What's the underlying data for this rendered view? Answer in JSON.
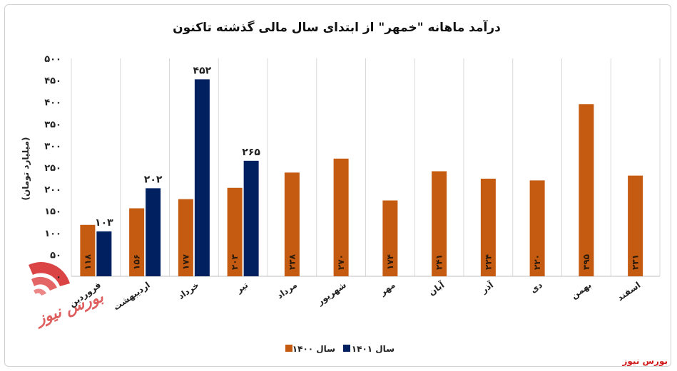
{
  "chart_data": {
    "type": "bar",
    "title": "درآمد ماهانه \"خمهر\" از ابتدای سال مالی گذشته تاکنون",
    "ylabel": "(میلیارد تومان)",
    "ylim": [
      0,
      500
    ],
    "yticks": [
      "۰",
      "۵۰",
      "۱۰۰",
      "۱۵۰",
      "۲۰۰",
      "۲۵۰",
      "۳۰۰",
      "۳۵۰",
      "۴۰۰",
      "۴۵۰",
      "۵۰۰"
    ],
    "categories": [
      "فروردین",
      "اردیبهشت",
      "خرداد",
      "تیر",
      "مرداد",
      "شهریور",
      "مهر",
      "آبان",
      "آذر",
      "دی",
      "بهمن",
      "اسفند"
    ],
    "series": [
      {
        "name": "سال ۱۴۰۰",
        "color": "#c55a11",
        "values": [
          118,
          156,
          177,
          203,
          238,
          270,
          174,
          241,
          224,
          220,
          395,
          231
        ],
        "labels": [
          "۱۱۸",
          "۱۵۶",
          "۱۷۷",
          "۲۰۳",
          "۲۳۸",
          "۲۷۰",
          "۱۷۴",
          "۲۴۱",
          "۲۲۴",
          "۲۲۰",
          "۳۹۵",
          "۲۳۱"
        ]
      },
      {
        "name": "سال ۱۴۰۱",
        "color": "#002060",
        "values": [
          103,
          202,
          452,
          265,
          null,
          null,
          null,
          null,
          null,
          null,
          null,
          null
        ],
        "labels": [
          "۱۰۳",
          "۲۰۲",
          "۴۵۲",
          "۲۶۵",
          "",
          "",
          "",
          "",
          "",
          "",
          "",
          ""
        ]
      }
    ],
    "legend_position": "bottom",
    "grid": "vertical"
  },
  "credit": "بورس نیوز",
  "watermark_text": "بورس نیوز"
}
